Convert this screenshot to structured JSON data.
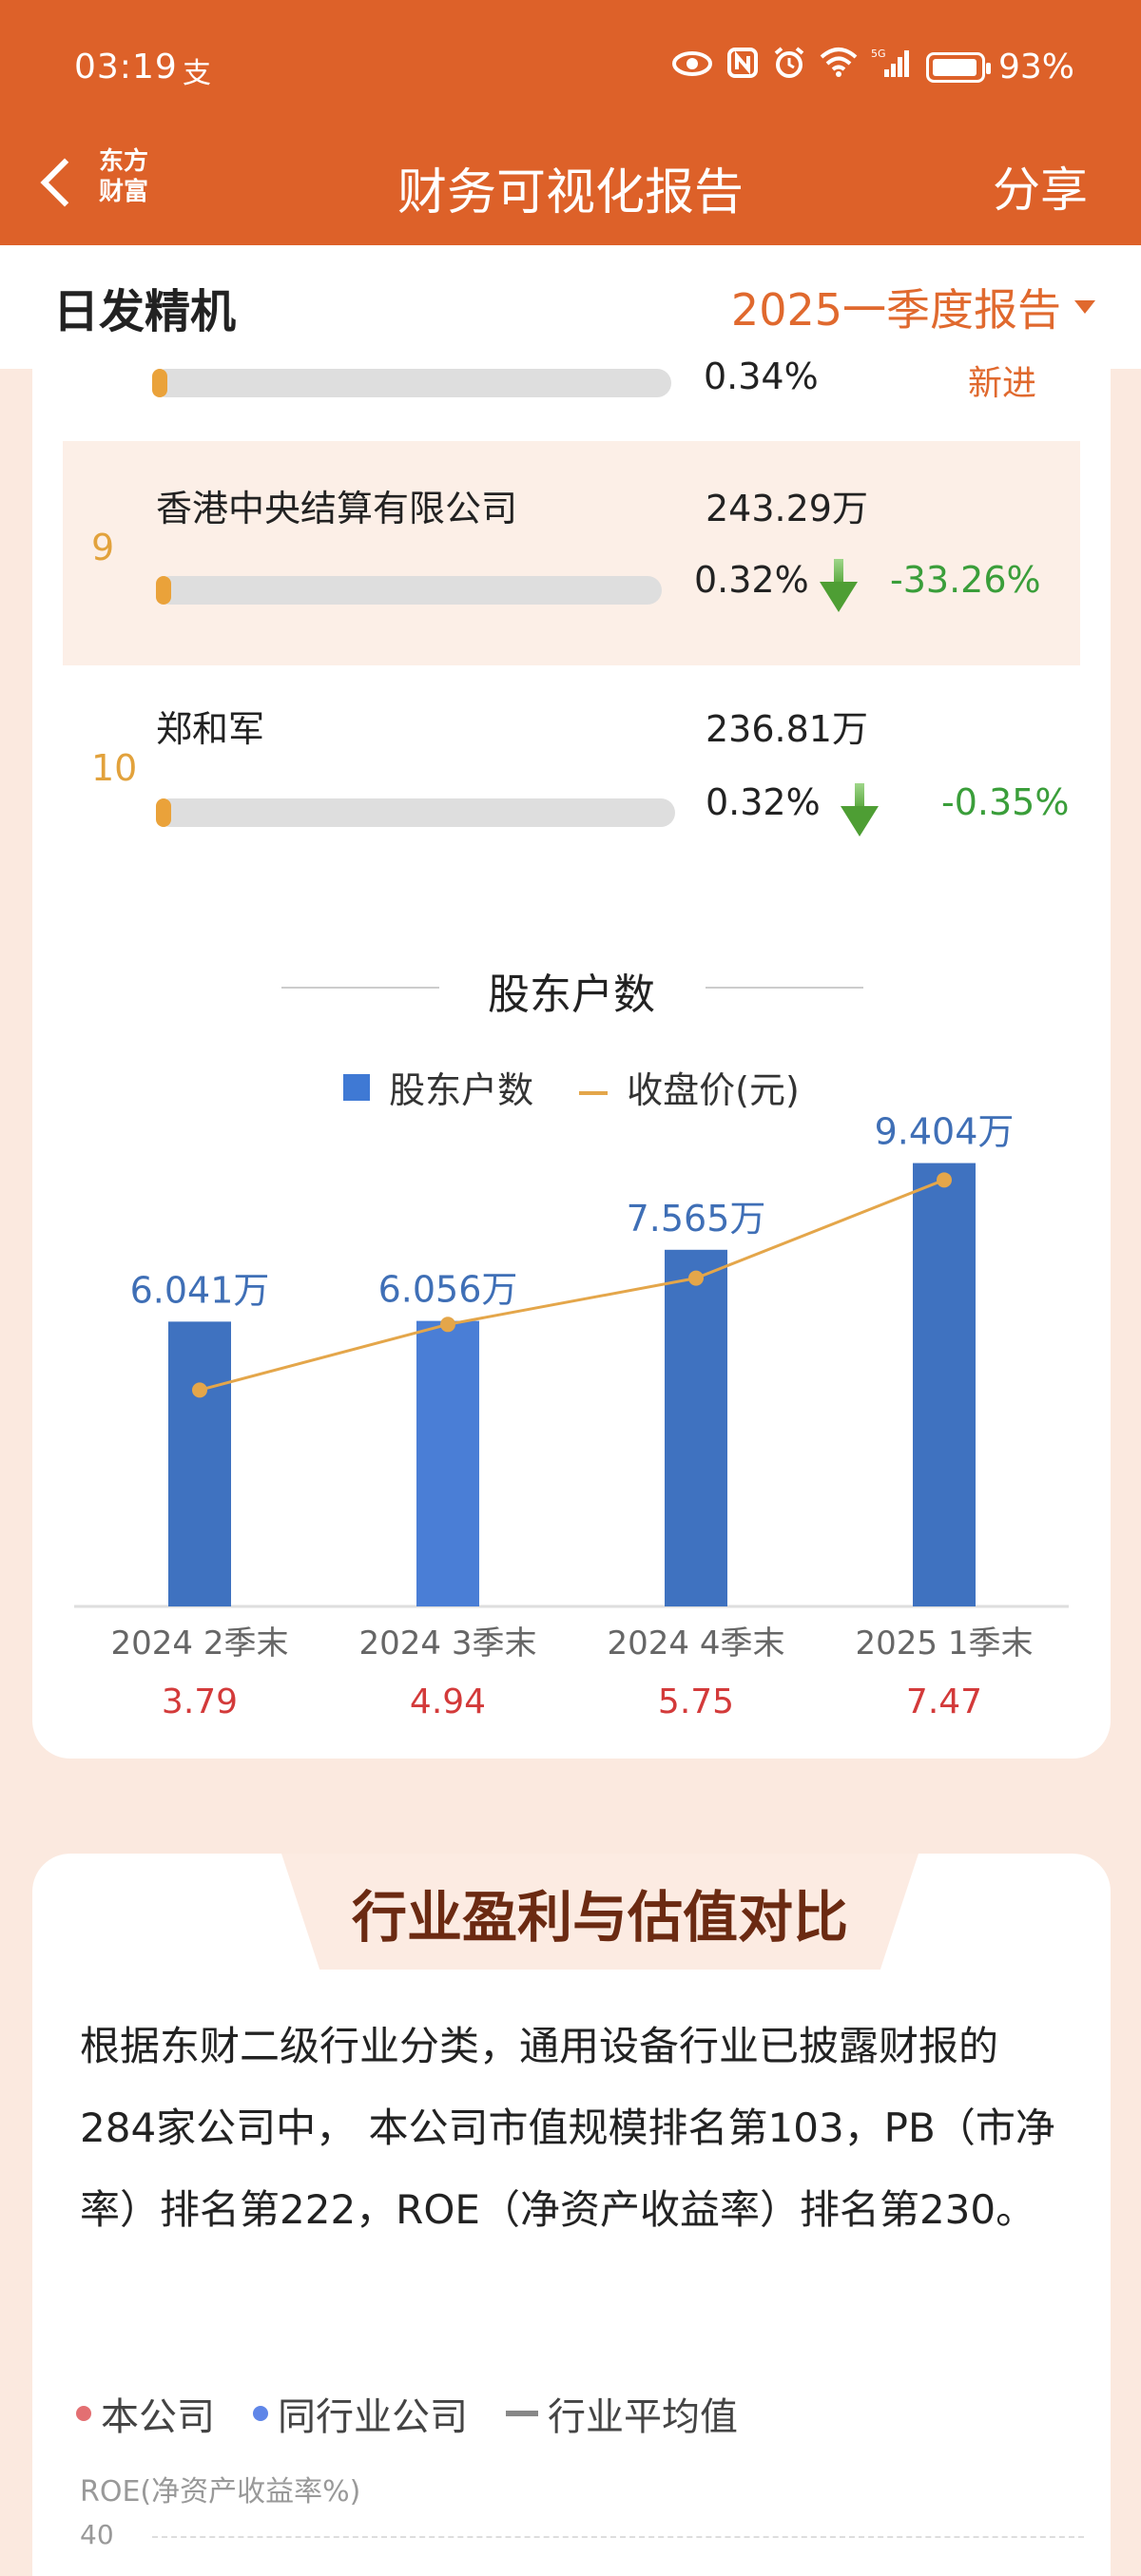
{
  "status_bar": {
    "time": "03:19",
    "pay_icon": "支",
    "battery": "93%",
    "signal": "5G"
  },
  "nav": {
    "brand_line1": "东方",
    "brand_line2": "财富",
    "title": "财务可视化报告",
    "share": "分享"
  },
  "header": {
    "stock_name": "日发精机",
    "period": "2025一季度报告"
  },
  "holders": {
    "partial_row": {
      "pct": "0.34%",
      "status": "新进",
      "fill": 0.03
    },
    "rows": [
      {
        "rank": "9",
        "name": "香港中央结算有限公司",
        "shares": "243.29万",
        "pct": "0.32%",
        "change": "-33.26%",
        "fill": 0.03
      },
      {
        "rank": "10",
        "name": "郑和军",
        "shares": "236.81万",
        "pct": "0.32%",
        "change": "-0.35%",
        "fill": 0.03
      }
    ]
  },
  "shareholders_section": {
    "title": "股东户数",
    "legend_bar": "股东户数",
    "legend_line": "收盘价(元)"
  },
  "chart_data": {
    "type": "bar",
    "categories": [
      "2024 2季末",
      "2024 3季末",
      "2024 4季末",
      "2025 1季末"
    ],
    "series": [
      {
        "name": "股东户数",
        "type": "bar",
        "values": [
          6.041,
          6.056,
          7.565,
          9.404
        ],
        "labels": [
          "6.041万",
          "6.056万",
          "7.565万",
          "9.404万"
        ]
      },
      {
        "name": "收盘价(元)",
        "type": "line",
        "values": [
          3.79,
          4.94,
          5.75,
          7.47
        ]
      }
    ],
    "colors": {
      "bar": "#3f72c0",
      "line": "#e4a64a",
      "price": "#d33a3a"
    }
  },
  "industry": {
    "title": "行业盈利与估值对比",
    "paragraph": "根据东财二级行业分类，通用设备行业已披露财报的284家公司中， 本公司市值规模排名第103，PB（市净率）排名第222，ROE（净资产收益率）排名第230。",
    "legend": [
      {
        "label": "本公司",
        "color": "#e36f72"
      },
      {
        "label": "同行业公司",
        "color": "#5f86e8"
      },
      {
        "label": "行业平均值",
        "color": "#888888"
      }
    ],
    "roe_label": "ROE(净资产收益率%)",
    "roe_tick": "40"
  }
}
